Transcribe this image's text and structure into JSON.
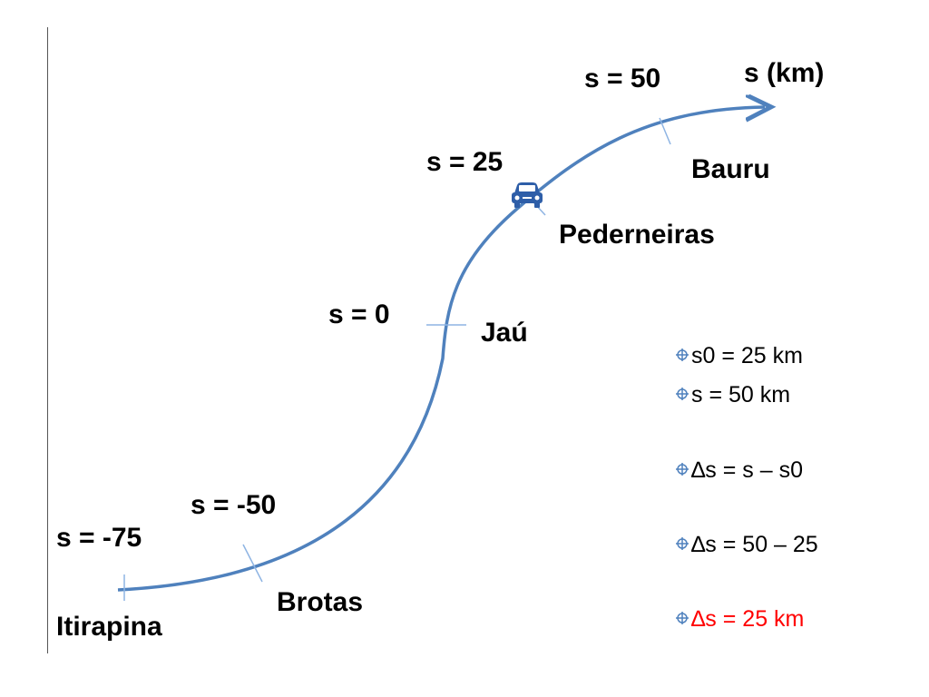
{
  "axis_label": "s (km)",
  "markers": [
    {
      "id": "itirapina",
      "s_label": "s = -75",
      "city": "Itirapina"
    },
    {
      "id": "brotas",
      "s_label": "s = -50",
      "city": "Brotas"
    },
    {
      "id": "jau",
      "s_label": "s = 0",
      "city": "Jaú"
    },
    {
      "id": "pederneiras",
      "s_label": "s = 25",
      "city": "Pederneiras"
    },
    {
      "id": "bauru",
      "s_label": "s = 50",
      "city": "Bauru"
    }
  ],
  "vehicle": {
    "icon": "car-icon",
    "position_label": "s = 25"
  },
  "bullets": [
    {
      "text": "s0 = 25 km",
      "color": "#000000"
    },
    {
      "text": "s = 50 km",
      "color": "#000000"
    },
    {
      "text": "∆s = s – s0",
      "color": "#000000"
    },
    {
      "text": "∆s = 50 – 25",
      "color": "#000000"
    },
    {
      "text": "∆s = 25 km",
      "color": "#ff0000"
    }
  ],
  "colors": {
    "road": "#4f81bd",
    "car": "#2e5ea8",
    "highlight": "#ff0000"
  }
}
